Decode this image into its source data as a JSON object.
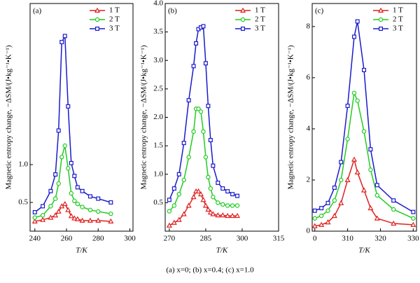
{
  "chart_data": [
    {
      "type": "line",
      "panel_label": "(a)",
      "x_label": "T/K",
      "y_label": "Magnetic entropy change, −ΔSM/(J•kg⁻¹•K⁻¹)",
      "legend": "upper right",
      "x": [
        240,
        245,
        250,
        253,
        255,
        257,
        259,
        261,
        263,
        265,
        267,
        270,
        275,
        280,
        288
      ],
      "series": [
        {
          "name": "1 T",
          "color": "#e02020",
          "marker": "triangle",
          "values": [
            0.25,
            0.27,
            0.3,
            0.33,
            0.38,
            0.45,
            0.48,
            0.4,
            0.32,
            0.29,
            0.28,
            0.26,
            0.26,
            0.26,
            0.25
          ]
        },
        {
          "name": "2 T",
          "color": "#22cc22",
          "marker": "circle",
          "values": [
            0.3,
            0.33,
            0.45,
            0.55,
            0.75,
            1.1,
            1.25,
            0.95,
            0.62,
            0.52,
            0.48,
            0.44,
            0.4,
            0.38,
            0.35
          ]
        },
        {
          "name": "3 T",
          "color": "#1a1acc",
          "marker": "square",
          "values": [
            0.37,
            0.45,
            0.65,
            0.87,
            1.45,
            2.62,
            2.7,
            1.77,
            1.02,
            0.85,
            0.7,
            0.65,
            0.58,
            0.55,
            0.5
          ]
        }
      ],
      "xlim": [
        237,
        302
      ],
      "ylim": [
        0.12,
        3.13
      ],
      "xticks": [
        240,
        260,
        280,
        300
      ],
      "yticks": [
        0.5,
        {
          "value": 1,
          "label": "1.0"
        }
      ]
    },
    {
      "type": "line",
      "panel_label": "(b)",
      "x_label": "T/K",
      "y_label": "Magnetic entropy change, −ΔSM/(J•kg⁻¹•K⁻¹)",
      "legend": "upper right",
      "x": [
        270,
        272,
        274,
        276,
        278,
        280,
        281,
        282,
        283,
        284,
        285,
        286,
        287,
        288,
        290,
        292,
        294,
        296,
        298
      ],
      "series": [
        {
          "name": "1 T",
          "color": "#e02020",
          "marker": "triangle",
          "values": [
            0.1,
            0.15,
            0.2,
            0.3,
            0.45,
            0.6,
            0.7,
            0.7,
            0.65,
            0.55,
            0.45,
            0.38,
            0.33,
            0.3,
            0.28,
            0.28,
            0.27,
            0.27,
            0.27
          ]
        },
        {
          "name": "2 T",
          "color": "#22cc22",
          "marker": "circle",
          "values": [
            0.35,
            0.45,
            0.65,
            0.9,
            1.3,
            1.75,
            2.15,
            2.15,
            2.1,
            1.75,
            1.3,
            0.95,
            0.75,
            0.6,
            0.5,
            0.47,
            0.45,
            0.45,
            0.45
          ]
        },
        {
          "name": "3 T",
          "color": "#1a1acc",
          "marker": "square",
          "values": [
            0.55,
            0.75,
            1.0,
            1.55,
            2.3,
            2.9,
            3.3,
            3.55,
            3.58,
            3.6,
            2.95,
            2.2,
            1.6,
            1.15,
            0.85,
            0.75,
            0.7,
            0.65,
            0.62
          ]
        }
      ],
      "xlim": [
        268.3,
        315
      ],
      "ylim": [
        0,
        4
      ],
      "xticks": [
        270,
        285,
        300,
        315
      ],
      "yticks": [
        0.5,
        {
          "value": 1,
          "label": "1.0"
        },
        1.5,
        {
          "value": 2,
          "label": "2.0"
        },
        2.5,
        {
          "value": 3,
          "label": "3.0"
        },
        3.5,
        {
          "value": 4,
          "label": "4.0"
        }
      ]
    },
    {
      "type": "line",
      "panel_label": "(c)",
      "x_label": "T/K",
      "y_label": "Magnetic entropy change, −ΔSM/(J•kg⁻¹•K⁻¹)",
      "legend": "upper right",
      "x": [
        300,
        302,
        304,
        306,
        308,
        310,
        312,
        313,
        315,
        317,
        319,
        324,
        330
      ],
      "series": [
        {
          "name": "1 T",
          "color": "#e02020",
          "marker": "triangle",
          "values": [
            0.2,
            0.25,
            0.35,
            0.6,
            1.1,
            2.0,
            2.8,
            2.3,
            1.6,
            0.9,
            0.5,
            0.3,
            0.25
          ]
        },
        {
          "name": "2 T",
          "color": "#22cc22",
          "marker": "circle",
          "values": [
            0.5,
            0.6,
            0.8,
            1.2,
            2.0,
            3.6,
            5.4,
            5.1,
            3.9,
            2.4,
            1.4,
            0.85,
            0.5
          ]
        },
        {
          "name": "3 T",
          "color": "#1a1acc",
          "marker": "square",
          "values": [
            0.8,
            0.9,
            1.1,
            1.7,
            2.7,
            4.9,
            7.6,
            8.2,
            6.3,
            3.2,
            1.8,
            1.2,
            0.75
          ]
        }
      ],
      "xlim": [
        299.2,
        331
      ],
      "ylim": [
        0,
        8.9
      ],
      "xticks": [
        {
          "value": 300,
          "label": "0"
        },
        310,
        320,
        330
      ],
      "yticks": [
        0,
        2,
        4,
        6,
        8
      ]
    }
  ],
  "caption": "(a) x=0; (b) x=0.4; (c) x=1.0"
}
